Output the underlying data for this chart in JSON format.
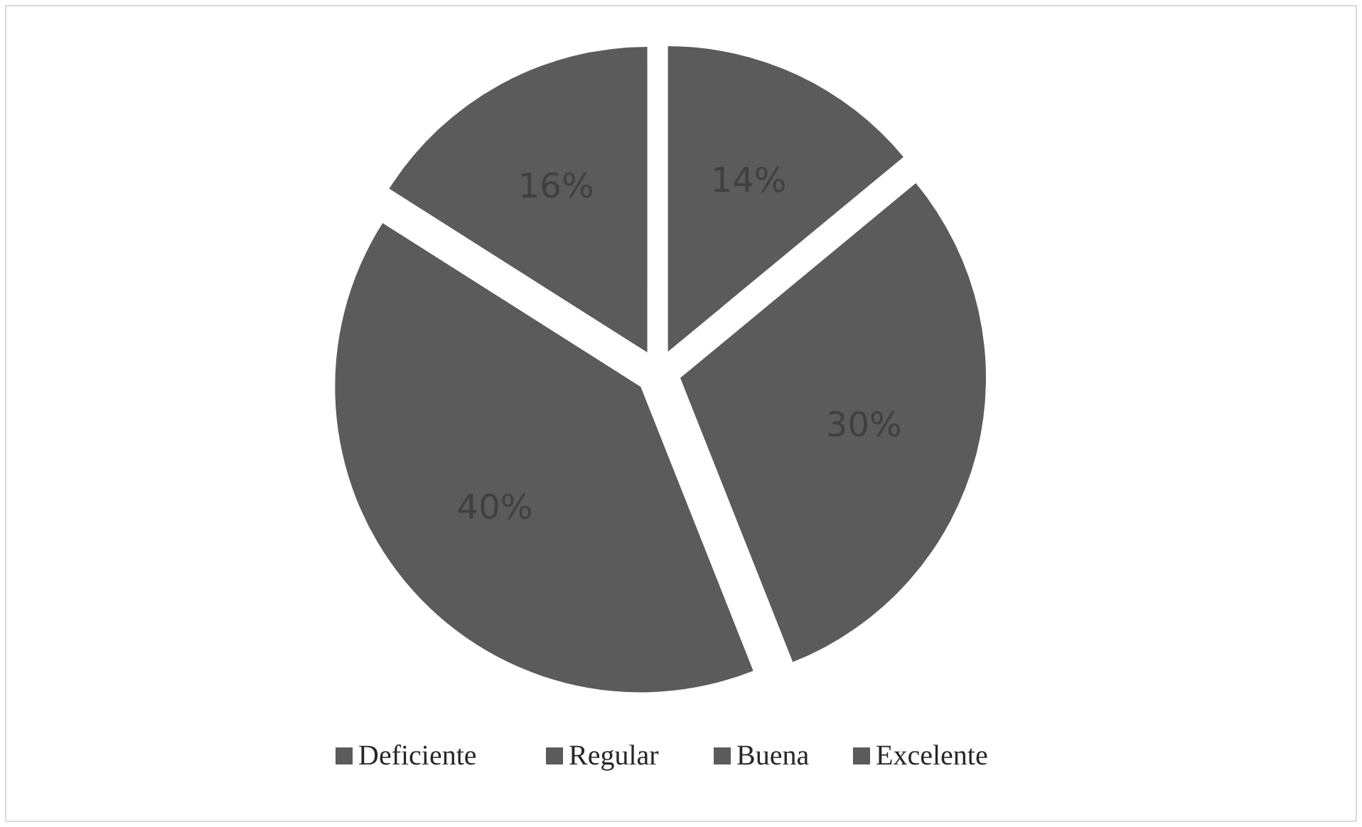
{
  "chart_data": {
    "type": "pie",
    "categories": [
      "Deficiente",
      "Regular",
      "Buena",
      "Excelente"
    ],
    "values": [
      14,
      30,
      40,
      16
    ],
    "colors": [
      "#5b5b5b",
      "#5b5b5b",
      "#5b5b5b",
      "#5b5b5b"
    ],
    "value_labels": [
      "14%",
      "30%",
      "40%",
      "16%"
    ],
    "legend": "bottom"
  }
}
